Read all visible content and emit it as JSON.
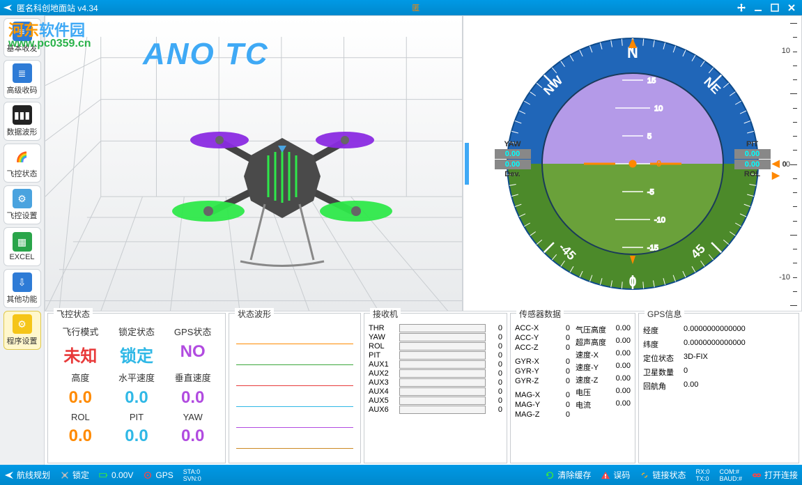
{
  "title": "匿名科创地面站  v4.34",
  "center_badge": "匿",
  "watermark": {
    "line1a": "河东",
    "line1b": "软件园",
    "line2": "www.pc0359.cn"
  },
  "logo3d": "ANO TC",
  "sidebar": {
    "items": [
      {
        "label": "基本收发",
        "bg": "#2e7bd6",
        "glyph": "≡"
      },
      {
        "label": "高级收码",
        "bg": "#2e7bd6",
        "glyph": "≣"
      },
      {
        "label": "数据波形",
        "bg": "#222",
        "glyph": "▮▮▮"
      },
      {
        "label": "飞控状态",
        "bg": "#fff",
        "glyph": "🌈"
      },
      {
        "label": "飞控设置",
        "bg": "#4aa3df",
        "glyph": "⚙"
      },
      {
        "label": "EXCEL",
        "bg": "#2aa54a",
        "glyph": "▦"
      },
      {
        "label": "其他功能",
        "bg": "#2e7bd6",
        "glyph": "⇩"
      },
      {
        "label": "程序设置",
        "bg": "#f5c518",
        "glyph": "⚙",
        "active": true
      }
    ]
  },
  "compass": {
    "ring_top_color": "#2066b8",
    "ring_bottom_color": "#4c8a2a",
    "sky_color": "#b49ae8",
    "ground_color": "#6aa13a",
    "pitch_ticks": [
      15,
      10,
      5,
      0,
      -5,
      -10,
      -15
    ],
    "dir_labels": {
      "N": "N",
      "NE": "NE",
      "NW": "NW"
    },
    "bottom_angles": [
      "-45",
      "0",
      "45"
    ],
    "left": {
      "l1": "YAW",
      "v1": "0.00",
      "l2": "0.00",
      "l3": "Dev."
    },
    "right": {
      "l1": "PIT",
      "v1": "0.00",
      "l2": "0.00",
      "l3": "ROL"
    }
  },
  "vscale": {
    "labels": [
      "10",
      "0",
      "-10"
    ],
    "marker_value": "0"
  },
  "panel_status": {
    "title": "飞控状态",
    "headers": [
      "飞行模式",
      "锁定状态",
      "GPS状态"
    ],
    "row1": [
      {
        "text": "未知",
        "color": "#e83a3a"
      },
      {
        "text": "锁定",
        "color": "#2fb8e6"
      },
      {
        "text": "NO",
        "color": "#b14be0"
      }
    ],
    "headers2": [
      "高度",
      "水平速度",
      "垂直速度"
    ],
    "row2": [
      {
        "text": "0.0",
        "color": "#ff8a00"
      },
      {
        "text": "0.0",
        "color": "#2fb8e6"
      },
      {
        "text": "0.0",
        "color": "#b14be0"
      }
    ],
    "headers3": [
      "ROL",
      "PIT",
      "YAW"
    ],
    "row3": [
      {
        "text": "0.0",
        "color": "#ff8a00"
      },
      {
        "text": "0.0",
        "color": "#2fb8e6"
      },
      {
        "text": "0.0",
        "color": "#b14be0"
      }
    ]
  },
  "panel_wave": {
    "title": "状态波形",
    "colors": [
      "#ff8a00",
      "#3aa63a",
      "#e83a3a",
      "#2fb8e6",
      "#b14be0",
      "#cc8822"
    ]
  },
  "panel_rx": {
    "title": "接收机",
    "rows": [
      {
        "lbl": "THR",
        "val": "0"
      },
      {
        "lbl": "YAW",
        "val": "0"
      },
      {
        "lbl": "ROL",
        "val": "0"
      },
      {
        "lbl": "PIT",
        "val": "0"
      },
      {
        "lbl": "AUX1",
        "val": "0"
      },
      {
        "lbl": "AUX2",
        "val": "0"
      },
      {
        "lbl": "AUX3",
        "val": "0"
      },
      {
        "lbl": "AUX4",
        "val": "0"
      },
      {
        "lbl": "AUX5",
        "val": "0"
      },
      {
        "lbl": "AUX6",
        "val": "0"
      }
    ]
  },
  "panel_sensor": {
    "title": "传感器数据",
    "left_groups": [
      [
        {
          "lbl": "ACC-X",
          "val": "0"
        },
        {
          "lbl": "ACC-Y",
          "val": "0"
        },
        {
          "lbl": "ACC-Z",
          "val": "0"
        }
      ],
      [
        {
          "lbl": "GYR-X",
          "val": "0"
        },
        {
          "lbl": "GYR-Y",
          "val": "0"
        },
        {
          "lbl": "GYR-Z",
          "val": "0"
        }
      ],
      [
        {
          "lbl": "MAG-X",
          "val": "0"
        },
        {
          "lbl": "MAG-Y",
          "val": "0"
        },
        {
          "lbl": "MAG-Z",
          "val": "0"
        }
      ]
    ],
    "right_rows": [
      {
        "lbl": "气压高度",
        "val": "0.00"
      },
      {
        "lbl": "超声高度",
        "val": "0.00"
      },
      {
        "lbl": "速度-X",
        "val": "0.00"
      },
      {
        "lbl": "速度-Y",
        "val": "0.00"
      },
      {
        "lbl": "速度-Z",
        "val": "0.00"
      },
      {
        "lbl": "电压",
        "val": "0.00"
      },
      {
        "lbl": "电流",
        "val": "0.00"
      }
    ]
  },
  "panel_gps": {
    "title": "GPS信息",
    "rows": [
      {
        "lbl": "经度",
        "val": "0.0000000000000"
      },
      {
        "lbl": "纬度",
        "val": "0.0000000000000"
      },
      {
        "lbl": "定位状态",
        "val": "3D-FIX"
      },
      {
        "lbl": "卫星数量",
        "val": "0"
      },
      {
        "lbl": "回航角",
        "val": "0.00"
      }
    ]
  },
  "statusbar": {
    "route": "航线规划",
    "lock": "锁定",
    "voltage": "0.00V",
    "gps": "GPS",
    "sta": "STA:0",
    "svn": "SVN:0",
    "clear": "清除缓存",
    "err": "误码",
    "link": "链接状态",
    "rx": "RX:0",
    "tx": "TX:0",
    "com": "COM:#",
    "baud": "BAUD:#",
    "open": "打开连接"
  }
}
